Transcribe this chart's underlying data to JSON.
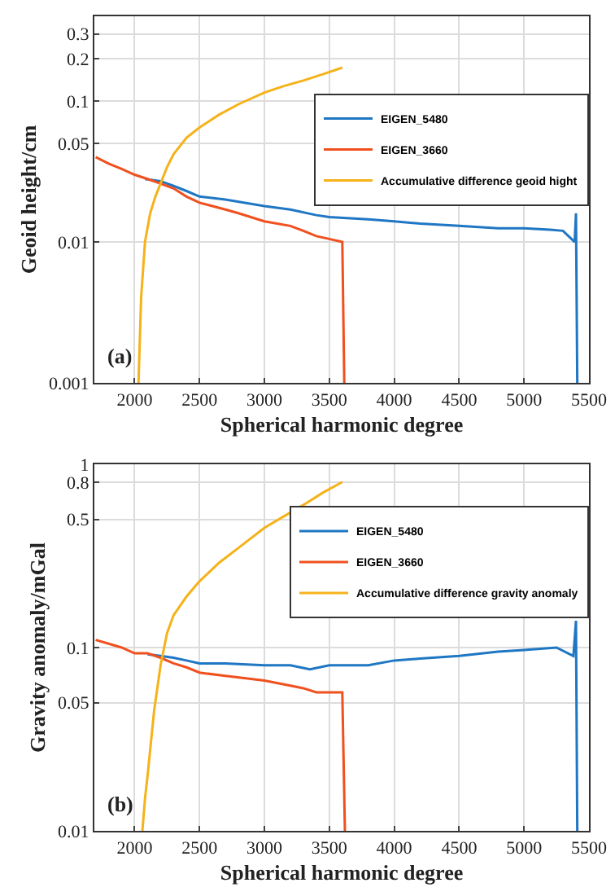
{
  "chart_data": [
    {
      "type": "line",
      "xlabel": "Spherical harmonic degree",
      "ylabel": "Geoid height/cm",
      "log": "y",
      "grid": true,
      "legend": "top right",
      "annotations": [
        "(a)"
      ],
      "xlim": [
        1690,
        5500
      ],
      "xticks": [
        2000,
        2500,
        3000,
        3500,
        4000,
        4500,
        5000,
        5500
      ],
      "ylim": [
        0.001,
        0.4
      ],
      "yticks": [
        0.001,
        0.01,
        0.05,
        0.1,
        0.2,
        0.3
      ],
      "series": [
        {
          "name": "EIGEN_5480",
          "color": "#1f77c4",
          "x": [
            2080,
            2200,
            2300,
            2400,
            2500,
            2700,
            3000,
            3200,
            3400,
            3500,
            3800,
            4000,
            4200,
            4500,
            4800,
            5000,
            5200,
            5300,
            5390,
            5400,
            5410
          ],
          "values": [
            0.028,
            0.027,
            0.025,
            0.023,
            0.021,
            0.02,
            0.018,
            0.017,
            0.0155,
            0.015,
            0.0145,
            0.014,
            0.0135,
            0.013,
            0.0125,
            0.0125,
            0.0122,
            0.012,
            0.01,
            0.016,
            0.001
          ]
        },
        {
          "name": "EIGEN_3660",
          "color": "#f0501e",
          "x": [
            1700,
            1800,
            1900,
            2000,
            2100,
            2200,
            2300,
            2400,
            2500,
            2700,
            2800,
            3000,
            3200,
            3300,
            3400,
            3500,
            3600,
            3615
          ],
          "values": [
            0.04,
            0.036,
            0.033,
            0.03,
            0.028,
            0.026,
            0.024,
            0.021,
            0.019,
            0.017,
            0.016,
            0.014,
            0.013,
            0.012,
            0.011,
            0.0105,
            0.01,
            0.001
          ]
        },
        {
          "name": "Accumulative difference geoid hight",
          "color": "#f5b21a",
          "x": [
            2030,
            2050,
            2080,
            2120,
            2160,
            2200,
            2250,
            2300,
            2400,
            2500,
            2650,
            2800,
            3000,
            3150,
            3300,
            3450,
            3600
          ],
          "values": [
            0.001,
            0.004,
            0.01,
            0.016,
            0.021,
            0.026,
            0.034,
            0.042,
            0.055,
            0.065,
            0.08,
            0.095,
            0.115,
            0.128,
            0.14,
            0.155,
            0.173
          ]
        }
      ]
    },
    {
      "type": "line",
      "xlabel": "Spherical harmonic degree",
      "ylabel": "Gravity anomaly/mGal",
      "log": "y",
      "grid": true,
      "legend": "top right",
      "annotations": [
        "(b)"
      ],
      "xlim": [
        1690,
        5500
      ],
      "xticks": [
        2000,
        2500,
        3000,
        3500,
        4000,
        4500,
        5000,
        5500
      ],
      "ylim": [
        0.01,
        1
      ],
      "yticks": [
        0.01,
        0.05,
        0.1,
        0.5,
        0.8,
        1
      ],
      "series": [
        {
          "name": "EIGEN_5480",
          "color": "#1f77c4",
          "x": [
            2100,
            2200,
            2300,
            2400,
            2500,
            2700,
            3000,
            3200,
            3350,
            3500,
            3800,
            4000,
            4200,
            4500,
            4800,
            5000,
            5250,
            5380,
            5400,
            5410
          ],
          "values": [
            0.092,
            0.09,
            0.088,
            0.085,
            0.082,
            0.082,
            0.08,
            0.08,
            0.076,
            0.08,
            0.08,
            0.085,
            0.087,
            0.09,
            0.095,
            0.097,
            0.1,
            0.09,
            0.14,
            0.01
          ]
        },
        {
          "name": "EIGEN_3660",
          "color": "#f0501e",
          "x": [
            1700,
            1800,
            1900,
            2000,
            2100,
            2200,
            2300,
            2400,
            2500,
            2700,
            3000,
            3200,
            3300,
            3400,
            3500,
            3600,
            3620
          ],
          "values": [
            0.11,
            0.105,
            0.1,
            0.093,
            0.093,
            0.088,
            0.082,
            0.078,
            0.073,
            0.07,
            0.066,
            0.062,
            0.06,
            0.057,
            0.057,
            0.057,
            0.01
          ]
        },
        {
          "name": "Accumulative difference gravity anomaly",
          "color": "#f5b21a",
          "x": [
            2060,
            2080,
            2100,
            2150,
            2200,
            2250,
            2300,
            2400,
            2500,
            2650,
            2800,
            3000,
            3150,
            3300,
            3450,
            3600
          ],
          "values": [
            0.01,
            0.015,
            0.02,
            0.045,
            0.08,
            0.12,
            0.15,
            0.19,
            0.23,
            0.29,
            0.35,
            0.45,
            0.52,
            0.6,
            0.7,
            0.8
          ]
        }
      ]
    }
  ]
}
